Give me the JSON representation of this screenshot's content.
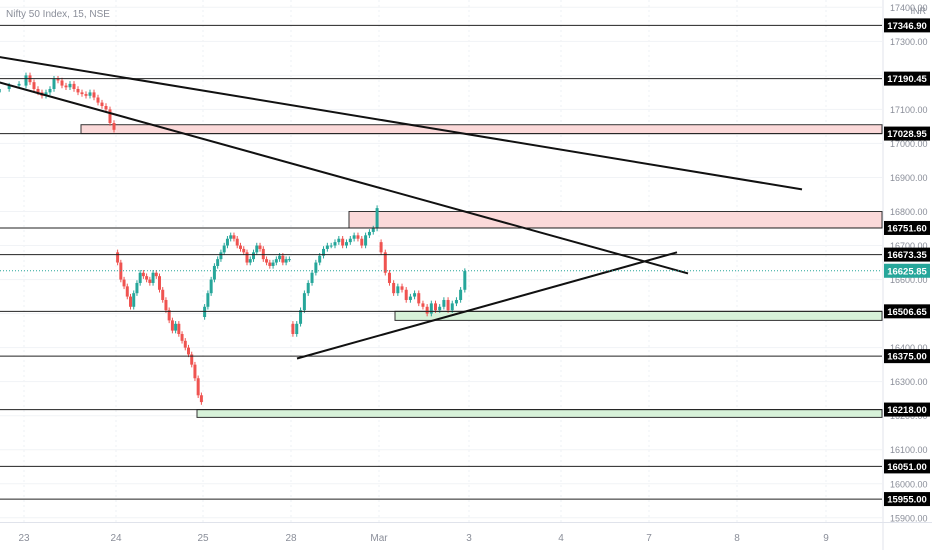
{
  "header": {
    "title": "Nifty 50 Index, 15, NSE"
  },
  "chart_data": {
    "type": "candlestick",
    "symbol": "Nifty 50 Index",
    "interval": "15",
    "exchange": "NSE",
    "currency_label": "INR",
    "y_axis_ticks": [
      17400,
      17300,
      17200,
      17100,
      17000,
      16900,
      16800,
      16700,
      16600,
      16500,
      16400,
      16300,
      16200,
      16100,
      16000,
      15900
    ],
    "ylim": [
      15870,
      17420
    ],
    "x_axis_labels": [
      "23",
      "24",
      "25",
      "28",
      "Mar",
      "3",
      "4",
      "7",
      "8",
      "9"
    ],
    "current_price": "16625.85",
    "horizontal_levels": [
      "17346.90",
      "17190.45",
      "17028.95",
      "16751.60",
      "16673.35",
      "16506.65",
      "16375.00",
      "16218.00",
      "16051.00",
      "15955.00"
    ],
    "zones": [
      {
        "type": "supply",
        "from": 17028.95,
        "to": 17055,
        "start_session": "24"
      },
      {
        "type": "supply",
        "from": 16751.6,
        "to": 16800,
        "start_session": "28"
      },
      {
        "type": "demand",
        "from": 16480,
        "to": 16506.65,
        "start_session": "Mar"
      },
      {
        "type": "demand",
        "from": 16195,
        "to": 16218.0,
        "start_session": "25"
      }
    ],
    "trendlines": [
      {
        "from": {
          "session": "22",
          "price": 17290
        },
        "to": {
          "session": "8",
          "price": 16865
        }
      },
      {
        "from": {
          "session": "22",
          "price": 17240
        },
        "to": {
          "session": "7",
          "price": 16618
        }
      },
      {
        "from": {
          "session": "28",
          "price": 16368
        },
        "to": {
          "session": "7",
          "price": 16680
        }
      }
    ],
    "series": [
      {
        "session": "22",
        "closes": [
          16950,
          16990,
          17030,
          17080,
          17110,
          17140,
          17150,
          17160,
          17170,
          17175
        ]
      },
      {
        "session": "23",
        "closes": [
          17200,
          17180,
          17160,
          17150,
          17140,
          17150,
          17160,
          17190,
          17185,
          17170,
          17165,
          17175,
          17160,
          17150,
          17145,
          17140,
          17150,
          17135,
          17120,
          17110,
          17100,
          17060,
          17040
        ]
      },
      {
        "session": "24",
        "closes": [
          16650,
          16600,
          16580,
          16550,
          16520,
          16560,
          16590,
          16620,
          16610,
          16600,
          16590,
          16620,
          16610,
          16570,
          16540,
          16510,
          16480,
          16450,
          16470,
          16440,
          16420,
          16400,
          16380,
          16350,
          16310,
          16260,
          16240
        ]
      },
      {
        "session": "25",
        "closes": [
          16520,
          16560,
          16600,
          16640,
          16660,
          16680,
          16700,
          16720,
          16730,
          16720,
          16700,
          16690,
          16680,
          16650,
          16660,
          16680,
          16700,
          16690,
          16660,
          16650,
          16640,
          16650,
          16660,
          16670,
          16650,
          16660,
          16660
        ]
      },
      {
        "session": "28",
        "closes": [
          16440,
          16470,
          16510,
          16560,
          16590,
          16620,
          16650,
          16670,
          16690,
          16700,
          16700,
          16710,
          16720,
          16700,
          16710,
          16720,
          16730,
          16720,
          16700,
          16730,
          16740,
          16750,
          16810
        ]
      },
      {
        "session": "Mar",
        "closes": [
          16680,
          16620,
          16590,
          16560,
          16580,
          16570,
          16540,
          16550,
          16560,
          16530,
          16520,
          16500,
          16530,
          16510,
          16520,
          16540,
          16510,
          16530,
          16540,
          16570,
          16625
        ]
      }
    ]
  }
}
